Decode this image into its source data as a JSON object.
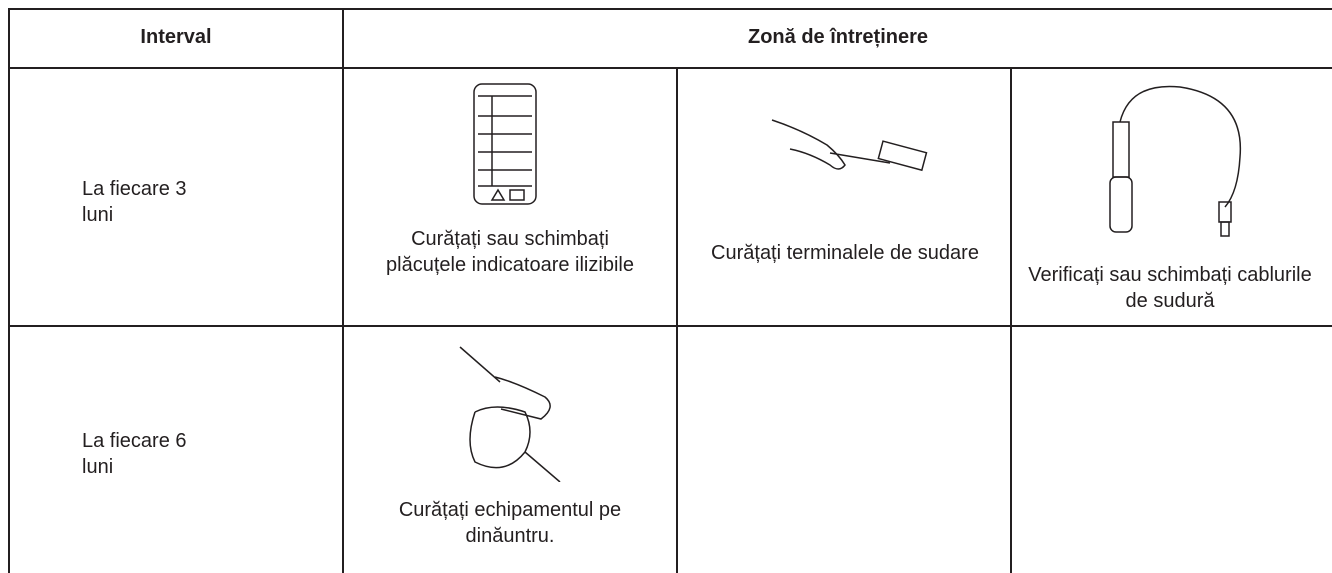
{
  "header": {
    "interval": "Interval",
    "zone": "Zonă de întreținere"
  },
  "rows": [
    {
      "interval": "La fiecare 3\nluni",
      "tasks": [
        "Curățați sau schimbați plăcuțele indicatoare ilizibile",
        "Curățați terminalele de sudare",
        "Verificați sau schimbați cablurile de sudură"
      ]
    },
    {
      "interval": "La fiecare 6\nluni",
      "tasks": [
        "Curățați echipamentul pe dinăuntru."
      ]
    }
  ]
}
